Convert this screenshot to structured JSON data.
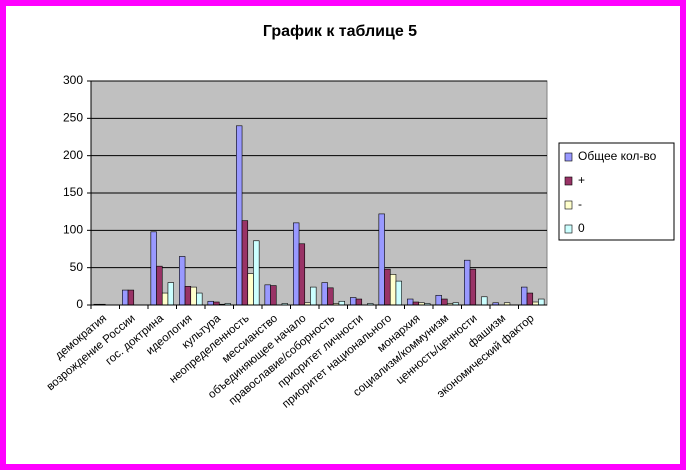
{
  "chart_data": {
    "type": "bar",
    "title": "График к таблице 5",
    "categories": [
      "демократия",
      "возрождение России",
      "гос. доктрина",
      "идеология",
      "культура",
      "неопределенность",
      "мессианство",
      "объединяющее начало",
      "православие/соборность",
      "приоритет личности",
      "приоритет национального",
      "монархия",
      "социализм/коммунизм",
      "ценность/ценности",
      "фашизм",
      "экономический фактор"
    ],
    "series": [
      {
        "name": "Общее кол-во",
        "color": "#9999ff",
        "values": [
          1,
          20,
          98,
          65,
          5,
          240,
          27,
          110,
          30,
          10,
          122,
          8,
          13,
          60,
          3,
          24
        ]
      },
      {
        "name": "+",
        "color": "#993366",
        "values": [
          1,
          20,
          52,
          25,
          4,
          113,
          26,
          82,
          23,
          8,
          48,
          4,
          8,
          48,
          0,
          16
        ]
      },
      {
        "name": "-",
        "color": "#ffffcc",
        "values": [
          0,
          0,
          16,
          24,
          1,
          42,
          0,
          3,
          2,
          0,
          41,
          3,
          2,
          0,
          3,
          4
        ]
      },
      {
        "name": "0",
        "color": "#ccffff",
        "values": [
          0,
          0,
          30,
          16,
          2,
          86,
          2,
          24,
          5,
          2,
          32,
          2,
          3,
          11,
          0,
          8
        ]
      }
    ],
    "ylim": [
      0,
      300
    ],
    "yticks": [
      0,
      50,
      100,
      150,
      200,
      250,
      300
    ],
    "grid": true,
    "legend": "right"
  }
}
